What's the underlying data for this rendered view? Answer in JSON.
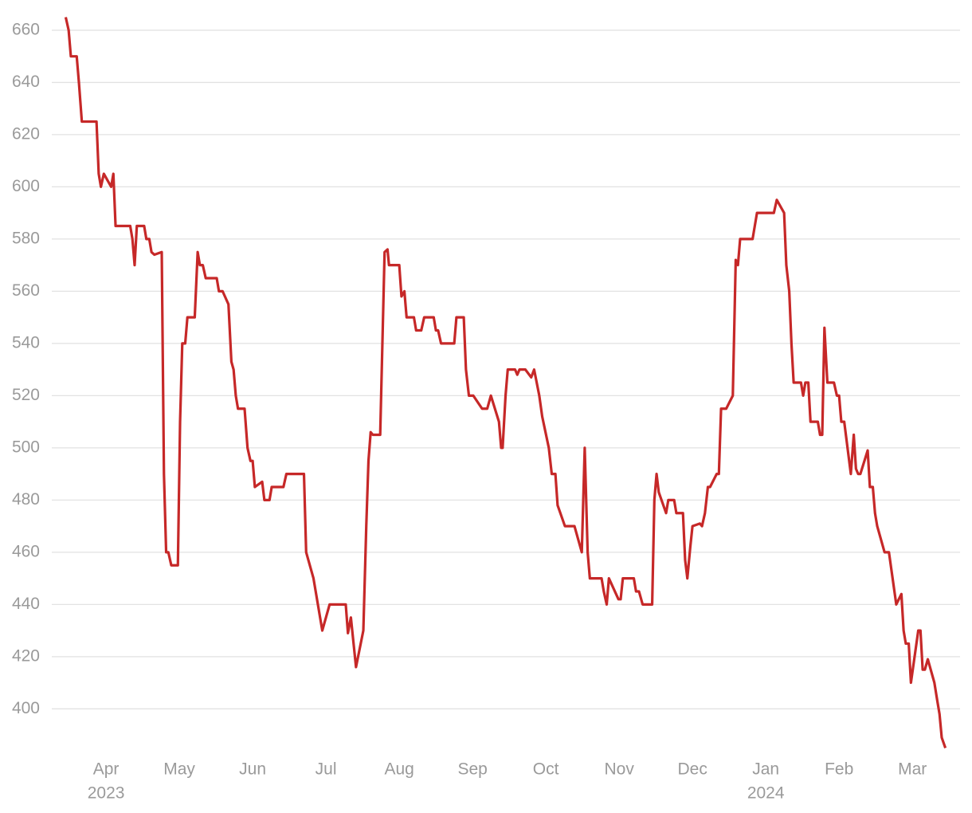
{
  "chart_data": {
    "type": "line",
    "color": "#c62828",
    "grid": true,
    "xlim": [
      -0.74,
      11.65
    ],
    "ylim": [
      383,
      667
    ],
    "yticks": [
      400,
      420,
      440,
      460,
      480,
      500,
      520,
      540,
      560,
      580,
      600,
      620,
      640,
      660
    ],
    "xticks": [
      {
        "value": 0,
        "label": "Apr"
      },
      {
        "value": 1,
        "label": "May"
      },
      {
        "value": 2,
        "label": "Jun"
      },
      {
        "value": 3,
        "label": "Jul"
      },
      {
        "value": 4,
        "label": "Aug"
      },
      {
        "value": 5,
        "label": "Sep"
      },
      {
        "value": 6,
        "label": "Oct"
      },
      {
        "value": 7,
        "label": "Nov"
      },
      {
        "value": 8,
        "label": "Dec"
      },
      {
        "value": 9,
        "label": "Jan"
      },
      {
        "value": 10,
        "label": "Feb"
      },
      {
        "value": 11,
        "label": "Mar"
      }
    ],
    "x_year_labels": [
      {
        "value": 0,
        "label": "2023"
      },
      {
        "value": 9,
        "label": "2024"
      }
    ],
    "x": [
      -0.55,
      -0.51,
      -0.48,
      -0.4,
      -0.37,
      -0.33,
      -0.13,
      -0.1,
      -0.07,
      -0.03,
      0.07,
      0.1,
      0.13,
      0.33,
      0.36,
      0.39,
      0.42,
      0.52,
      0.55,
      0.59,
      0.62,
      0.66,
      0.76,
      0.79,
      0.82,
      0.85,
      0.89,
      0.98,
      1.01,
      1.04,
      1.08,
      1.11,
      1.21,
      1.25,
      1.28,
      1.32,
      1.36,
      1.51,
      1.54,
      1.59,
      1.67,
      1.71,
      1.74,
      1.77,
      1.8,
      1.89,
      1.93,
      1.97,
      2.0,
      2.03,
      2.13,
      2.16,
      2.23,
      2.26,
      2.42,
      2.46,
      2.7,
      2.73,
      2.83,
      2.95,
      3.05,
      3.27,
      3.3,
      3.34,
      3.41,
      3.51,
      3.55,
      3.58,
      3.61,
      3.64,
      3.74,
      3.77,
      3.8,
      3.84,
      3.86,
      4.0,
      4.03,
      4.07,
      4.1,
      4.2,
      4.23,
      4.3,
      4.34,
      4.47,
      4.5,
      4.53,
      4.57,
      4.75,
      4.78,
      4.88,
      4.91,
      4.95,
      5.01,
      5.13,
      5.2,
      5.25,
      5.36,
      5.39,
      5.41,
      5.45,
      5.48,
      5.58,
      5.61,
      5.64,
      5.72,
      5.8,
      5.84,
      5.91,
      5.95,
      6.04,
      6.08,
      6.13,
      6.16,
      6.26,
      6.39,
      6.49,
      6.53,
      6.57,
      6.6,
      6.76,
      6.79,
      6.83,
      6.86,
      6.99,
      7.02,
      7.05,
      7.2,
      7.23,
      7.27,
      7.32,
      7.45,
      7.48,
      7.51,
      7.54,
      7.64,
      7.67,
      7.75,
      7.78,
      7.87,
      7.9,
      7.93,
      7.97,
      8.0,
      8.1,
      8.13,
      8.17,
      8.21,
      8.24,
      8.33,
      8.36,
      8.39,
      8.46,
      8.55,
      8.59,
      8.62,
      8.65,
      8.82,
      8.88,
      9.11,
      9.15,
      9.25,
      9.28,
      9.32,
      9.35,
      9.38,
      9.48,
      9.51,
      9.54,
      9.58,
      9.61,
      9.71,
      9.74,
      9.77,
      9.8,
      9.84,
      9.93,
      9.97,
      10.0,
      10.03,
      10.07,
      10.16,
      10.2,
      10.23,
      10.26,
      10.29,
      10.39,
      10.42,
      10.46,
      10.49,
      10.52,
      10.62,
      10.68,
      10.78,
      10.85,
      10.88,
      10.91,
      10.95,
      10.98,
      11.08,
      11.11,
      11.14,
      11.17,
      11.21,
      11.3,
      11.34,
      11.37,
      11.4,
      11.45
    ],
    "values": [
      665,
      660,
      650,
      650,
      640,
      625,
      625,
      605,
      600,
      605,
      600,
      605,
      585,
      585,
      580,
      570,
      585,
      585,
      580,
      580,
      575,
      574,
      575,
      490,
      460,
      460,
      455,
      455,
      510,
      540,
      540,
      550,
      550,
      575,
      570,
      570,
      565,
      565,
      560,
      560,
      555,
      533,
      530,
      520,
      515,
      515,
      500,
      495,
      495,
      485,
      487,
      480,
      480,
      485,
      485,
      490,
      490,
      460,
      450,
      430,
      440,
      440,
      429,
      435,
      416,
      430,
      470,
      495,
      506,
      505,
      505,
      540,
      575,
      576,
      570,
      570,
      558,
      560,
      550,
      550,
      545,
      545,
      550,
      550,
      545,
      545,
      540,
      540,
      550,
      550,
      530,
      520,
      520,
      515,
      515,
      520,
      510,
      500,
      500,
      520,
      530,
      530,
      528,
      530,
      530,
      527,
      530,
      520,
      512,
      500,
      490,
      490,
      478,
      470,
      470,
      460,
      500,
      460,
      450,
      450,
      445,
      440,
      450,
      442,
      442,
      450,
      450,
      445,
      445,
      440,
      440,
      480,
      490,
      483,
      475,
      480,
      480,
      475,
      475,
      457,
      450,
      462,
      470,
      471,
      470,
      475,
      485,
      485,
      490,
      490,
      515,
      515,
      520,
      572,
      570,
      580,
      580,
      590,
      590,
      595,
      590,
      570,
      560,
      540,
      525,
      525,
      520,
      525,
      525,
      510,
      510,
      505,
      505,
      546,
      525,
      525,
      520,
      520,
      510,
      510,
      490,
      505,
      492,
      490,
      490,
      499,
      485,
      485,
      475,
      470,
      460,
      460,
      440,
      444,
      430,
      425,
      425,
      410,
      430,
      430,
      415,
      415,
      419,
      410,
      403,
      398,
      389,
      385
    ]
  }
}
